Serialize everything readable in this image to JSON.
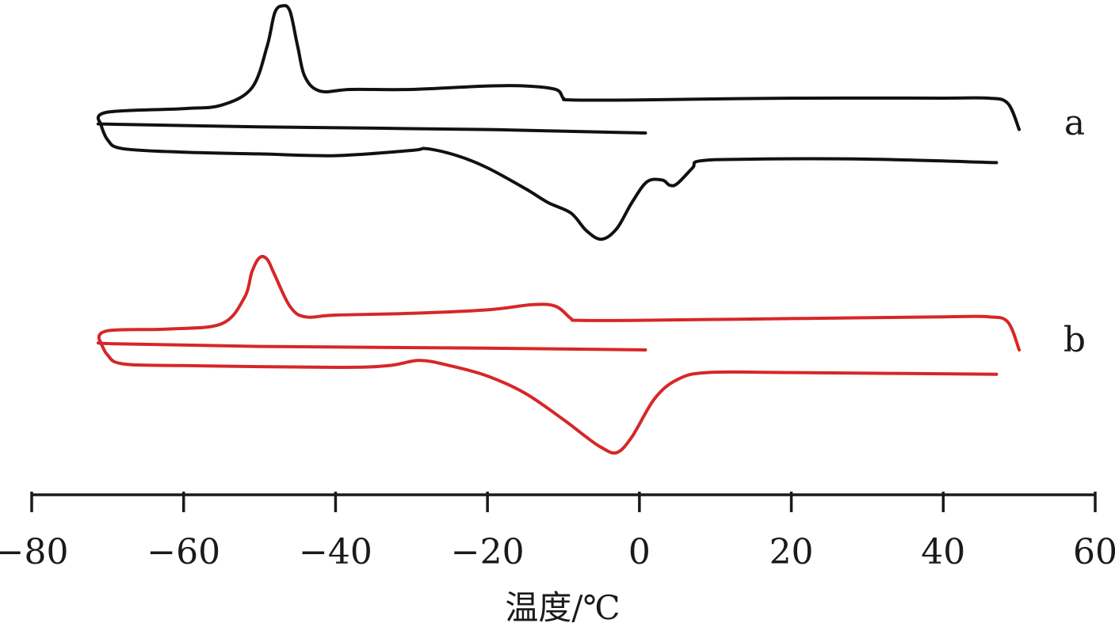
{
  "chart_data": {
    "type": "line",
    "title": "",
    "xlabel": "温度/℃",
    "ylabel": "",
    "xlim": [
      -80,
      60
    ],
    "x_ticks": [
      -80,
      -60,
      -40,
      -20,
      0,
      20,
      40,
      60
    ],
    "grid": false,
    "legend": "none",
    "series": [
      {
        "name": "a",
        "color": "#111111",
        "loop": [
          [
            0.8,
            0.0
          ],
          [
            -20,
            0.2
          ],
          [
            -50,
            0.35
          ],
          [
            -69,
            0.5
          ],
          [
            -71,
            0.6
          ],
          [
            -70,
            1.2
          ],
          [
            -60,
            1.4
          ],
          [
            -55,
            1.6
          ],
          [
            -51,
            2.6
          ],
          [
            -49,
            5.0
          ],
          [
            -48,
            6.9
          ],
          [
            -47,
            7.3
          ],
          [
            -46,
            7.0
          ],
          [
            -45,
            5.0
          ],
          [
            -44,
            3.2
          ],
          [
            -42,
            2.4
          ],
          [
            -38,
            2.5
          ],
          [
            -30,
            2.5
          ],
          [
            -20,
            2.7
          ],
          [
            -15,
            2.7
          ],
          [
            -11,
            2.5
          ],
          [
            -10,
            2.0
          ],
          [
            -9,
            1.9
          ],
          [
            0,
            1.9
          ],
          [
            20,
            2.0
          ],
          [
            40,
            2.0
          ],
          [
            46,
            2.0
          ],
          [
            48.5,
            1.7
          ],
          [
            50,
            0.2
          ],
          "break",
          [
            -71,
            0.6
          ],
          [
            -70,
            -0.4
          ],
          [
            -68,
            -0.9
          ],
          [
            -60,
            -1.1
          ],
          [
            -50,
            -1.2
          ],
          [
            -40,
            -1.3
          ],
          [
            -30,
            -1.0
          ],
          [
            -28,
            -0.9
          ],
          [
            -24,
            -1.3
          ],
          [
            -20,
            -2.0
          ],
          [
            -15,
            -3.2
          ],
          [
            -12,
            -4.0
          ],
          [
            -9,
            -4.6
          ],
          [
            -7,
            -5.6
          ],
          [
            -5,
            -6.1
          ],
          [
            -3,
            -5.5
          ],
          [
            -1,
            -4.0
          ],
          [
            1,
            -2.8
          ],
          [
            3,
            -2.7
          ],
          [
            4,
            -3.0
          ],
          [
            5,
            -2.9
          ],
          [
            7,
            -2.0
          ],
          [
            8,
            -1.6
          ],
          [
            15,
            -1.5
          ],
          [
            30,
            -1.5
          ],
          [
            47,
            -1.7
          ]
        ]
      },
      {
        "name": "b",
        "color": "#d62728",
        "loop": [
          [
            0.8,
            0.0
          ],
          [
            -20,
            0.1
          ],
          [
            -50,
            0.2
          ],
          [
            -69,
            0.35
          ],
          [
            -71,
            0.5
          ],
          [
            -70,
            1.1
          ],
          [
            -62,
            1.2
          ],
          [
            -55,
            1.5
          ],
          [
            -52,
            3.0
          ],
          [
            -51,
            4.5
          ],
          [
            -50,
            5.3
          ],
          [
            -49,
            5.2
          ],
          [
            -48,
            4.3
          ],
          [
            -46,
            2.5
          ],
          [
            -44,
            1.9
          ],
          [
            -40,
            2.0
          ],
          [
            -30,
            2.1
          ],
          [
            -20,
            2.3
          ],
          [
            -14,
            2.6
          ],
          [
            -11,
            2.5
          ],
          [
            -9,
            1.8
          ],
          [
            -8,
            1.7
          ],
          [
            0,
            1.7
          ],
          [
            20,
            1.8
          ],
          [
            40,
            1.9
          ],
          [
            46,
            1.9
          ],
          [
            48.5,
            1.6
          ],
          [
            50,
            0.0
          ],
          "break",
          [
            -71,
            0.5
          ],
          [
            -70,
            -0.3
          ],
          [
            -68,
            -0.8
          ],
          [
            -60,
            -0.9
          ],
          [
            -40,
            -1.0
          ],
          [
            -33,
            -0.9
          ],
          [
            -29,
            -0.6
          ],
          [
            -25,
            -0.9
          ],
          [
            -20,
            -1.5
          ],
          [
            -15,
            -2.5
          ],
          [
            -10,
            -4.0
          ],
          [
            -7,
            -5.0
          ],
          [
            -5,
            -5.6
          ],
          [
            -3,
            -5.9
          ],
          [
            -1,
            -5.0
          ],
          [
            2,
            -2.8
          ],
          [
            5,
            -1.7
          ],
          [
            9,
            -1.3
          ],
          [
            20,
            -1.3
          ],
          [
            47,
            -1.4
          ]
        ]
      }
    ],
    "series_label_position": "right"
  }
}
